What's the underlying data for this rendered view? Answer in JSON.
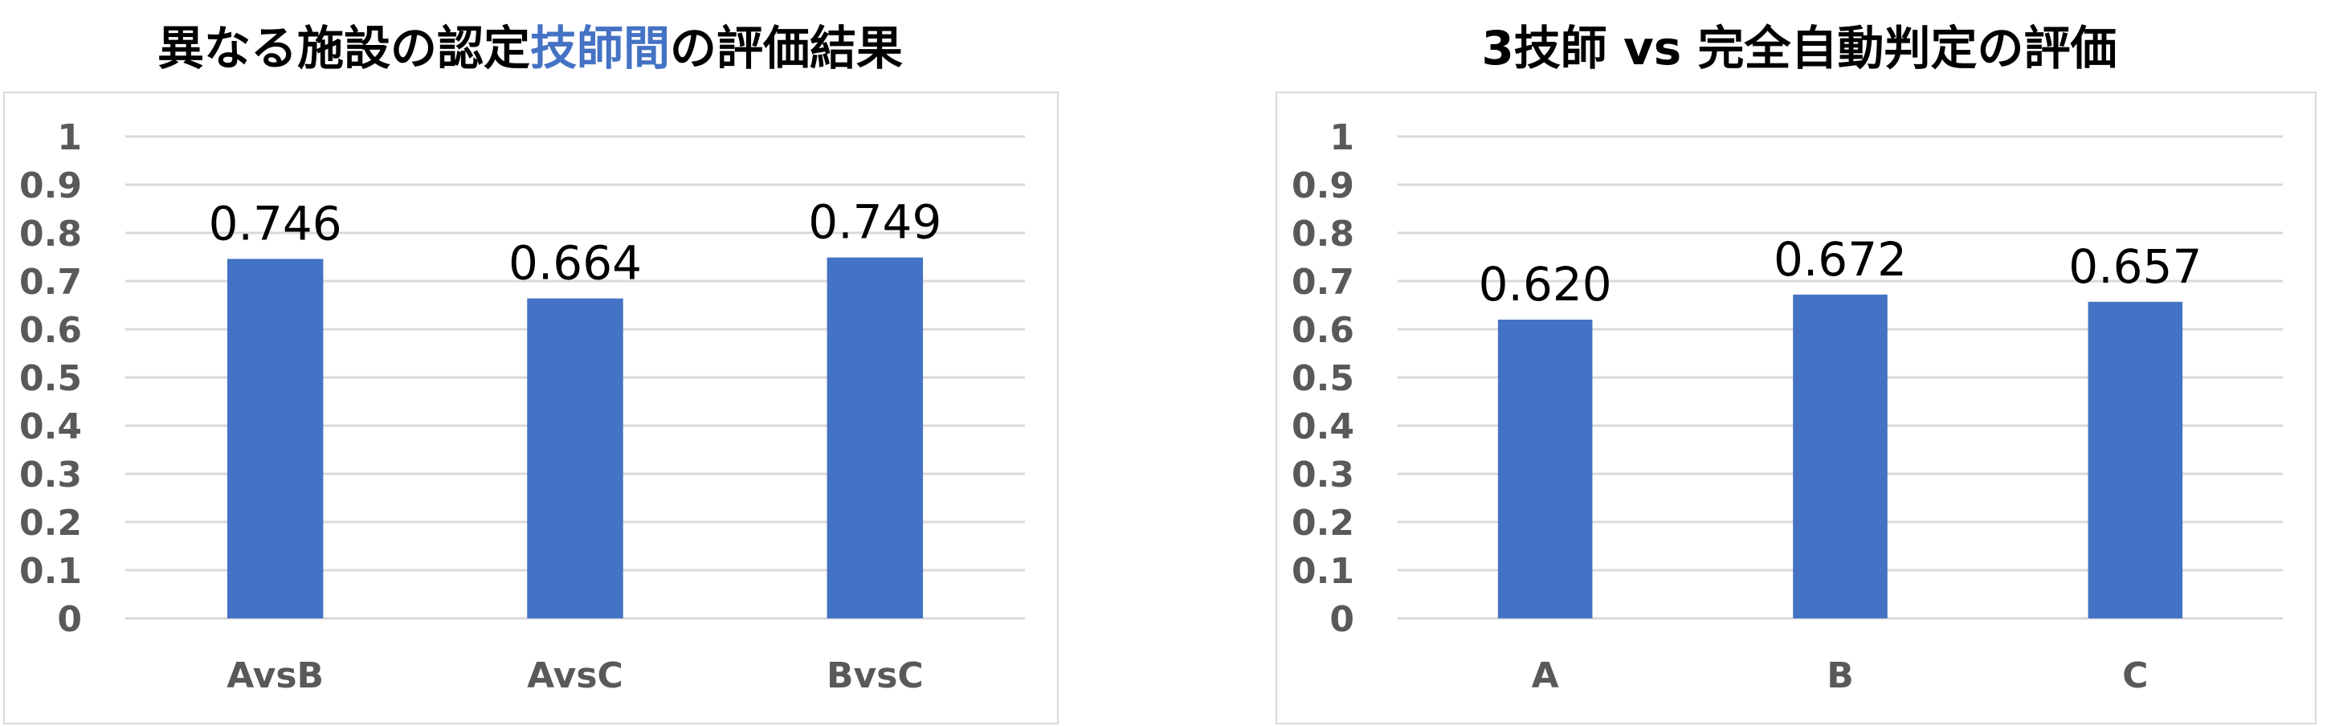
{
  "colors": {
    "bar": "#4472c4",
    "grid": "#d9d9d9",
    "tick": "#595959",
    "highlight": "#4472c4"
  },
  "chart_data": [
    {
      "type": "bar",
      "title": "異なる施設の認定技師間の評価結果",
      "title_parts": {
        "pre": "異なる施設の認定",
        "highlight": "技師間",
        "post": "の評価結果"
      },
      "categories": [
        "AvsB",
        "AvsC",
        "BvsC"
      ],
      "values": [
        0.746,
        0.664,
        0.749
      ],
      "data_labels": [
        "0.746",
        "0.664",
        "0.749"
      ],
      "ylim": [
        0,
        1
      ],
      "yticks": [
        0,
        0.1,
        0.2,
        0.3,
        0.4,
        0.5,
        0.6,
        0.7,
        0.8,
        0.9,
        1
      ],
      "ytick_labels": [
        "0",
        "0.1",
        "0.2",
        "0.3",
        "0.4",
        "0.5",
        "0.6",
        "0.7",
        "0.8",
        "0.9",
        "1"
      ],
      "grid": true,
      "legend": "none"
    },
    {
      "type": "bar",
      "title": "3技師 vs 完全自動判定の評価",
      "title_parts": {
        "pre": "3技師 vs 完全自動判定の評価",
        "highlight": "",
        "post": ""
      },
      "categories": [
        "A",
        "B",
        "C"
      ],
      "values": [
        0.62,
        0.672,
        0.657
      ],
      "data_labels": [
        "0.620",
        "0.672",
        "0.657"
      ],
      "ylim": [
        0,
        1
      ],
      "yticks": [
        0,
        0.1,
        0.2,
        0.3,
        0.4,
        0.5,
        0.6,
        0.7,
        0.8,
        0.9,
        1
      ],
      "ytick_labels": [
        "0",
        "0.1",
        "0.2",
        "0.3",
        "0.4",
        "0.5",
        "0.6",
        "0.7",
        "0.8",
        "0.9",
        "1"
      ],
      "grid": true,
      "legend": "none"
    }
  ]
}
